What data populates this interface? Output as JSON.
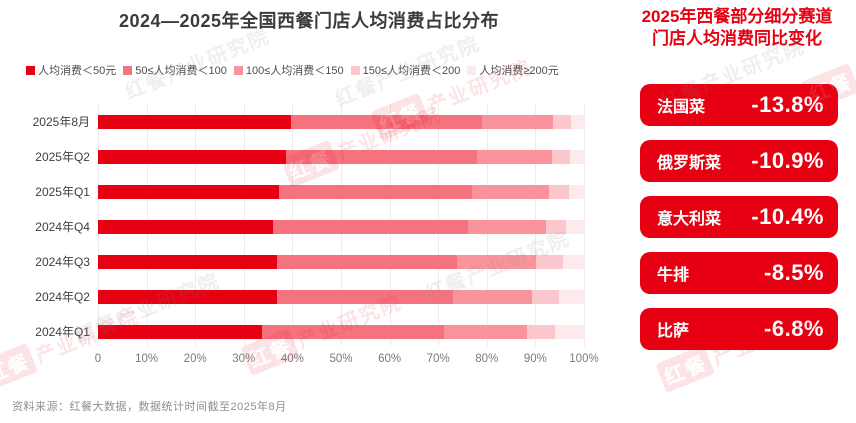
{
  "chart_data": {
    "type": "bar",
    "orientation": "horizontal",
    "stacked": true,
    "title": "2024—2025年全国西餐门店人均消费占比分布",
    "unit": "%",
    "categories": [
      "2025年8月",
      "2025年Q2",
      "2025年Q1",
      "2024年Q4",
      "2024年Q3",
      "2024年Q2",
      "2024年Q1"
    ],
    "series": [
      {
        "name": "人均消费＜50元",
        "color": "#e60012",
        "values": [
          39.7,
          38.7,
          37.2,
          36.1,
          36.8,
          36.8,
          33.7
        ]
      },
      {
        "name": "50≤人均消费＜100",
        "color": "#f5737f",
        "values": [
          39.4,
          39.2,
          39.7,
          40.0,
          37.1,
          36.2,
          37.5
        ]
      },
      {
        "name": "100≤人均消费＜150",
        "color": "#f9949d",
        "values": [
          14.5,
          15.6,
          15.9,
          16.1,
          16.3,
          16.3,
          17.1
        ]
      },
      {
        "name": "150≤人均消费＜200",
        "color": "#fcc6cd",
        "values": [
          3.7,
          3.6,
          4.1,
          4.1,
          5.4,
          5.5,
          5.7
        ]
      },
      {
        "name": "人均消费≥200元",
        "color": "#fdeaed",
        "values": [
          2.7,
          2.9,
          3.1,
          3.7,
          4.4,
          5.2,
          6.0
        ]
      }
    ],
    "x_ticks": [
      "0",
      "10%",
      "20%",
      "30%",
      "40%",
      "50%",
      "60%",
      "70%",
      "80%",
      "90%",
      "100%"
    ],
    "xlim": [
      0,
      100
    ],
    "grid": "vertical",
    "legend_position": "top"
  },
  "right_panel": {
    "title_line1": "2025年西餐部分细分赛道",
    "title_line2": "门店人均消费同比变化",
    "badge_color": "#e60012",
    "items": [
      {
        "label": "法国菜",
        "value": "-13.8%"
      },
      {
        "label": "俄罗斯菜",
        "value": "-10.9%"
      },
      {
        "label": "意大利菜",
        "value": "-10.4%"
      },
      {
        "label": "牛排",
        "value": "-8.5%"
      },
      {
        "label": "比萨",
        "value": "-6.8%"
      }
    ]
  },
  "footer": {
    "source": "资料来源：红餐大数据，数据统计时间截至2025年8月"
  },
  "watermark": {
    "text": "红餐产业研究院",
    "box_text": "红餐",
    "text_rest": "产业研究院"
  }
}
